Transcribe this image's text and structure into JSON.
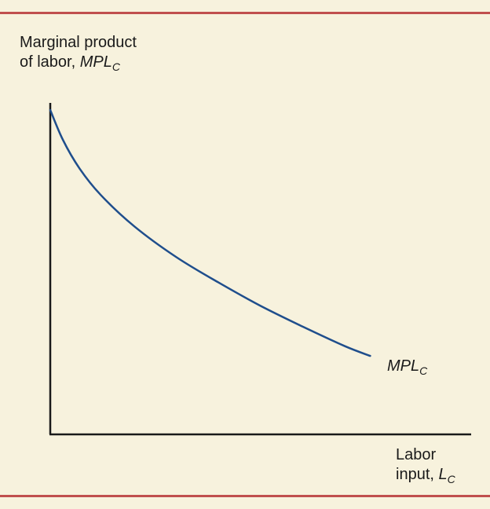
{
  "chart_data": {
    "type": "line",
    "title": "",
    "ylabel": {
      "line1": "Marginal product",
      "line2_prefix": "of labor, ",
      "line2_var": "MPL",
      "line2_sub": "C"
    },
    "xlabel": {
      "line1": "Labor",
      "line2_prefix": "input, ",
      "line2_var": "L",
      "line2_sub": "C"
    },
    "xlim": [
      0,
      100
    ],
    "ylim": [
      0,
      100
    ],
    "grid": false,
    "series": [
      {
        "name": "MPL_C",
        "label_var": "MPL",
        "label_sub": "C",
        "color": "#1f4e8c",
        "x": [
          0,
          3,
          7,
          12,
          20,
          30,
          40,
          50,
          60,
          70,
          76
        ],
        "y": [
          100,
          90.8,
          81.9,
          73.8,
          64.1,
          54.6,
          46.8,
          39.6,
          33.2,
          27.2,
          24.2
        ]
      }
    ]
  },
  "colors": {
    "background": "#f7f2dd",
    "rule": "#c0504d",
    "axis": "#1a1a1a"
  }
}
